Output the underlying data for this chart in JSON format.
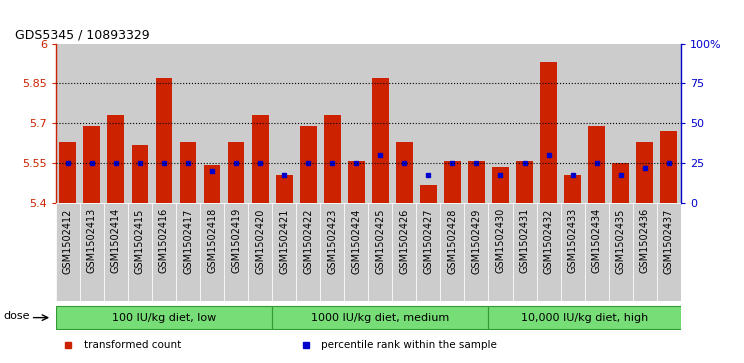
{
  "title": "GDS5345 / 10893329",
  "samples": [
    "GSM1502412",
    "GSM1502413",
    "GSM1502414",
    "GSM1502415",
    "GSM1502416",
    "GSM1502417",
    "GSM1502418",
    "GSM1502419",
    "GSM1502420",
    "GSM1502421",
    "GSM1502422",
    "GSM1502423",
    "GSM1502424",
    "GSM1502425",
    "GSM1502426",
    "GSM1502427",
    "GSM1502428",
    "GSM1502429",
    "GSM1502430",
    "GSM1502431",
    "GSM1502432",
    "GSM1502433",
    "GSM1502434",
    "GSM1502435",
    "GSM1502436",
    "GSM1502437"
  ],
  "bar_values": [
    5.63,
    5.69,
    5.73,
    5.62,
    5.87,
    5.63,
    5.545,
    5.63,
    5.73,
    5.505,
    5.69,
    5.73,
    5.56,
    5.87,
    5.63,
    5.47,
    5.56,
    5.56,
    5.535,
    5.56,
    5.93,
    5.505,
    5.69,
    5.55,
    5.63,
    5.67
  ],
  "percentile_values": [
    25,
    25,
    25,
    25,
    25,
    25,
    20,
    25,
    25,
    18,
    25,
    25,
    25,
    30,
    25,
    18,
    25,
    25,
    18,
    25,
    30,
    18,
    25,
    18,
    22,
    25
  ],
  "group_boundaries": [
    {
      "start": 0,
      "end": 8,
      "label": "100 IU/kg diet, low"
    },
    {
      "start": 9,
      "end": 17,
      "label": "1000 IU/kg diet, medium"
    },
    {
      "start": 18,
      "end": 25,
      "label": "10,000 IU/kg diet, high"
    }
  ],
  "ymin": 5.4,
  "ymax": 6.0,
  "yticks": [
    5.4,
    5.55,
    5.7,
    5.85,
    6.0
  ],
  "ytick_labels": [
    "5.4",
    "5.55",
    "5.7",
    "5.85",
    "6"
  ],
  "hlines": [
    5.55,
    5.7,
    5.85
  ],
  "right_yticks": [
    0,
    25,
    50,
    75,
    100
  ],
  "right_ytick_labels": [
    "0",
    "25",
    "50",
    "75",
    "100%"
  ],
  "bar_color": "#cc2200",
  "blue_color": "#0000cc",
  "col_bg_color": "#cccccc",
  "plot_bg": "#ffffff",
  "bar_width": 0.7,
  "green_color": "#77dd77",
  "green_edge": "#339933",
  "dose_label": "dose",
  "legend_items": [
    {
      "color": "#cc2200",
      "label": "transformed count"
    },
    {
      "color": "#0000cc",
      "label": "percentile rank within the sample"
    }
  ],
  "title_fontsize": 9,
  "axis_fontsize": 8,
  "label_fontsize": 7
}
